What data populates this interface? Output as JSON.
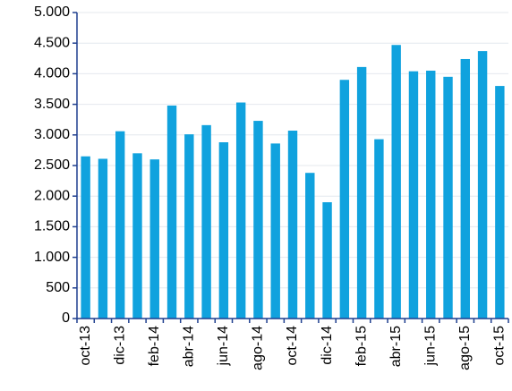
{
  "chart_data": {
    "type": "bar",
    "categories": [
      "oct-13",
      null,
      "dic-13",
      null,
      "feb-14",
      null,
      "abr-14",
      null,
      "jun-14",
      null,
      "ago-14",
      null,
      "oct-14",
      null,
      "dic-14",
      null,
      "feb-15",
      null,
      "abr-15",
      null,
      "jun-15",
      null,
      "ago-15",
      null,
      "oct-15"
    ],
    "values": [
      2650,
      2610,
      3060,
      2700,
      2600,
      3480,
      3010,
      3160,
      2880,
      3530,
      3230,
      2860,
      3070,
      2380,
      1900,
      3900,
      4110,
      2930,
      4470,
      4040,
      4050,
      3950,
      4240,
      4370,
      3800
    ],
    "color": "#10a2de",
    "ylim": [
      0,
      5000
    ],
    "yticks": [
      0,
      500,
      {
        "value": 1000,
        "label": "1.000"
      },
      {
        "value": 1500,
        "label": "1.500"
      },
      {
        "value": 2000,
        "label": "2.000"
      },
      {
        "value": 2500,
        "label": "2.500"
      },
      {
        "value": 3000,
        "label": "3.000"
      },
      {
        "value": 3500,
        "label": "3.500"
      },
      {
        "value": 4000,
        "label": "4.000"
      },
      {
        "value": 4500,
        "label": "4.500"
      },
      {
        "value": 5000,
        "label": "5.000"
      }
    ],
    "grid": true
  }
}
